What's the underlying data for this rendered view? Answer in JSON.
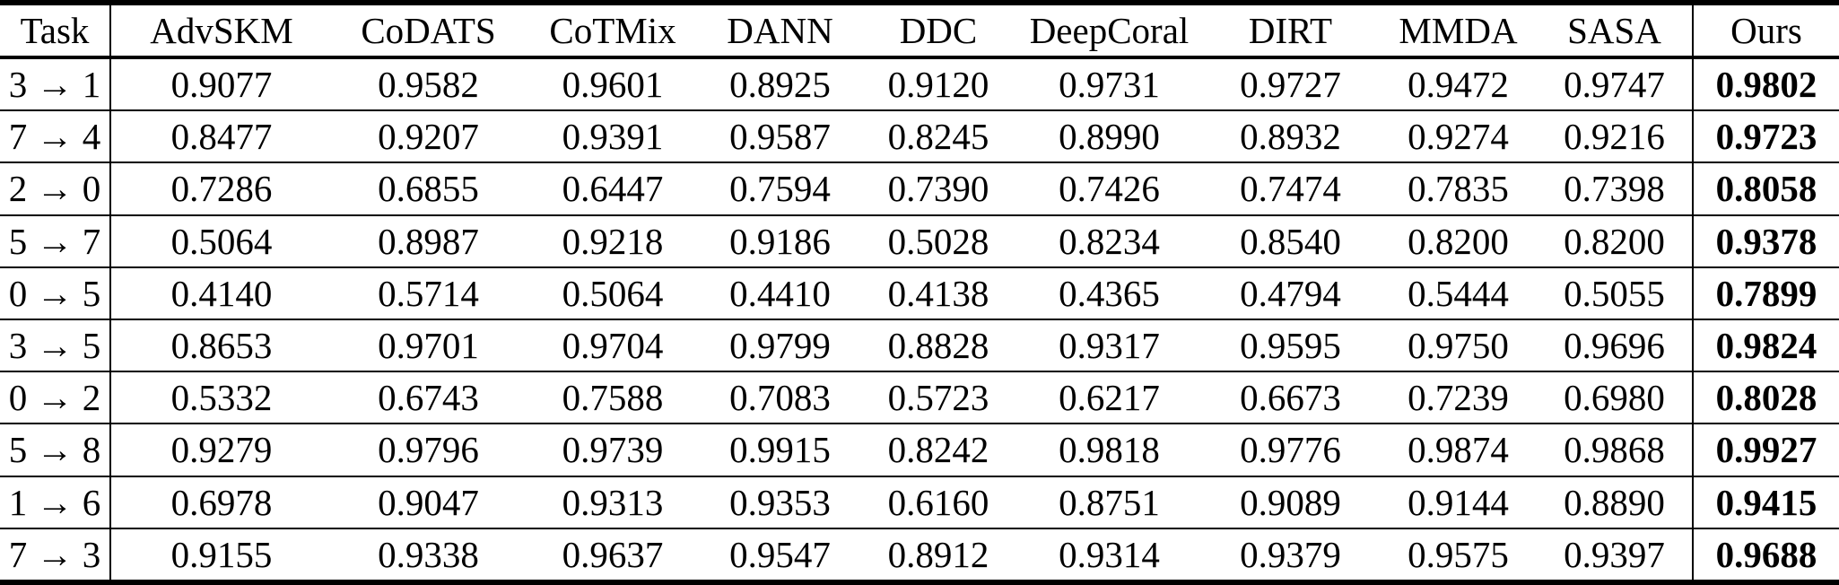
{
  "page": {
    "background_color": "#ffffff",
    "text_color": "#000000",
    "rule_color": "#000000"
  },
  "table": {
    "columns": [
      "Task",
      "AdvSKM",
      "CoDATS",
      "CoTMix",
      "DANN",
      "DDC",
      "DeepCoral",
      "DIRT",
      "MMDA",
      "SASA",
      "Ours"
    ],
    "bold_column": "Ours",
    "rows": [
      {
        "task": "3 → 1",
        "values": [
          "0.9077",
          "0.9582",
          "0.9601",
          "0.8925",
          "0.9120",
          "0.9731",
          "0.9727",
          "0.9472",
          "0.9747"
        ],
        "ours": "0.9802"
      },
      {
        "task": "7 → 4",
        "values": [
          "0.8477",
          "0.9207",
          "0.9391",
          "0.9587",
          "0.8245",
          "0.8990",
          "0.8932",
          "0.9274",
          "0.9216"
        ],
        "ours": "0.9723"
      },
      {
        "task": "2 → 0",
        "values": [
          "0.7286",
          "0.6855",
          "0.6447",
          "0.7594",
          "0.7390",
          "0.7426",
          "0.7474",
          "0.7835",
          "0.7398"
        ],
        "ours": "0.8058"
      },
      {
        "task": "5 → 7",
        "values": [
          "0.5064",
          "0.8987",
          "0.9218",
          "0.9186",
          "0.5028",
          "0.8234",
          "0.8540",
          "0.8200",
          "0.8200"
        ],
        "ours": "0.9378"
      },
      {
        "task": "0 → 5",
        "values": [
          "0.4140",
          "0.5714",
          "0.5064",
          "0.4410",
          "0.4138",
          "0.4365",
          "0.4794",
          "0.5444",
          "0.5055"
        ],
        "ours": "0.7899"
      },
      {
        "task": "3 → 5",
        "values": [
          "0.8653",
          "0.9701",
          "0.9704",
          "0.9799",
          "0.8828",
          "0.9317",
          "0.9595",
          "0.9750",
          "0.9696"
        ],
        "ours": "0.9824"
      },
      {
        "task": "0 → 2",
        "values": [
          "0.5332",
          "0.6743",
          "0.7588",
          "0.7083",
          "0.5723",
          "0.6217",
          "0.6673",
          "0.7239",
          "0.6980"
        ],
        "ours": "0.8028"
      },
      {
        "task": "5 → 8",
        "values": [
          "0.9279",
          "0.9796",
          "0.9739",
          "0.9915",
          "0.8242",
          "0.9818",
          "0.9776",
          "0.9874",
          "0.9868"
        ],
        "ours": "0.9927"
      },
      {
        "task": "1 → 6",
        "values": [
          "0.6978",
          "0.9047",
          "0.9313",
          "0.9353",
          "0.6160",
          "0.8751",
          "0.9089",
          "0.9144",
          "0.8890"
        ],
        "ours": "0.9415"
      },
      {
        "task": "7 → 3",
        "values": [
          "0.9155",
          "0.9338",
          "0.9637",
          "0.9547",
          "0.8912",
          "0.9314",
          "0.9379",
          "0.9575",
          "0.9397"
        ],
        "ours": "0.9688"
      }
    ]
  }
}
